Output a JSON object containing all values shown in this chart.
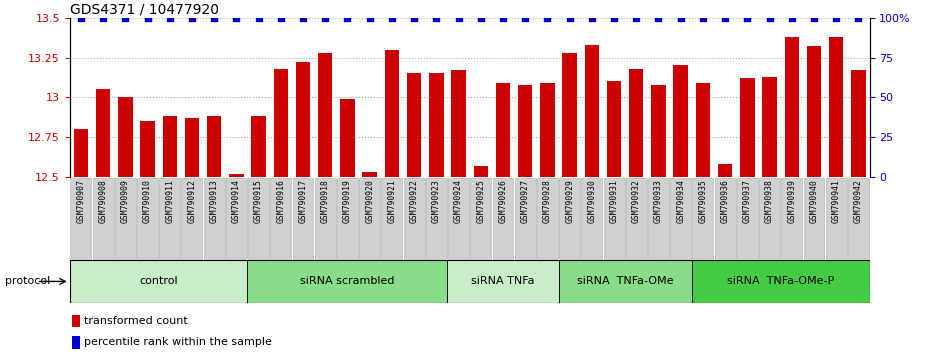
{
  "title": "GDS4371 / 10477920",
  "samples": [
    "GSM790907",
    "GSM790908",
    "GSM790909",
    "GSM790910",
    "GSM790911",
    "GSM790912",
    "GSM790913",
    "GSM790914",
    "GSM790915",
    "GSM790916",
    "GSM790917",
    "GSM790918",
    "GSM790919",
    "GSM790920",
    "GSM790921",
    "GSM790922",
    "GSM790923",
    "GSM790924",
    "GSM790925",
    "GSM790926",
    "GSM790927",
    "GSM790928",
    "GSM790929",
    "GSM790930",
    "GSM790931",
    "GSM790932",
    "GSM790933",
    "GSM790934",
    "GSM790935",
    "GSM790936",
    "GSM790937",
    "GSM790938",
    "GSM790939",
    "GSM790940",
    "GSM790941",
    "GSM790942"
  ],
  "bar_values": [
    12.8,
    13.05,
    13.0,
    12.85,
    12.88,
    12.87,
    12.88,
    12.52,
    12.88,
    13.18,
    13.22,
    13.28,
    12.99,
    12.53,
    13.3,
    13.15,
    13.15,
    13.17,
    12.57,
    13.09,
    13.08,
    13.09,
    13.28,
    13.33,
    13.1,
    13.18,
    13.08,
    13.2,
    13.09,
    12.58,
    13.12,
    13.13,
    13.38,
    13.32,
    13.38,
    13.17
  ],
  "groups": [
    {
      "label": "control",
      "start": 0,
      "end": 8,
      "color": "#c8edc8"
    },
    {
      "label": "siRNA scrambled",
      "start": 8,
      "end": 17,
      "color": "#88dd88"
    },
    {
      "label": "siRNA TNFa",
      "start": 17,
      "end": 22,
      "color": "#c8edc8"
    },
    {
      "label": "siRNA  TNFa-OMe",
      "start": 22,
      "end": 28,
      "color": "#88dd88"
    },
    {
      "label": "siRNA  TNFa-OMe-P",
      "start": 28,
      "end": 36,
      "color": "#44cc44"
    }
  ],
  "ylim_left": [
    12.5,
    13.5
  ],
  "ylim_right": [
    0,
    100
  ],
  "yticks_left": [
    12.5,
    12.75,
    13.0,
    13.25,
    13.5
  ],
  "ytick_labels_left": [
    "12.5",
    "12.75",
    "13",
    "13.25",
    "13.5"
  ],
  "yticks_right": [
    0,
    25,
    50,
    75,
    100
  ],
  "ytick_labels_right": [
    "0",
    "25",
    "50",
    "75",
    "100%"
  ],
  "bar_color": "#cc0000",
  "dot_color": "#0000cc",
  "dot_size": 18,
  "grid_color": "#aaaaaa",
  "tick_color_left": "#cc0000",
  "tick_color_right": "#0000cc",
  "xtick_bg_color": "#d0d0d0",
  "xtick_border_color": "#aaaaaa",
  "legend_items": [
    {
      "color": "#cc0000",
      "label": "transformed count"
    },
    {
      "color": "#0000cc",
      "label": "percentile rank within the sample"
    }
  ],
  "title_fontsize": 10,
  "bar_fontsize": 5.8,
  "group_fontsize": 8,
  "legend_fontsize": 8
}
